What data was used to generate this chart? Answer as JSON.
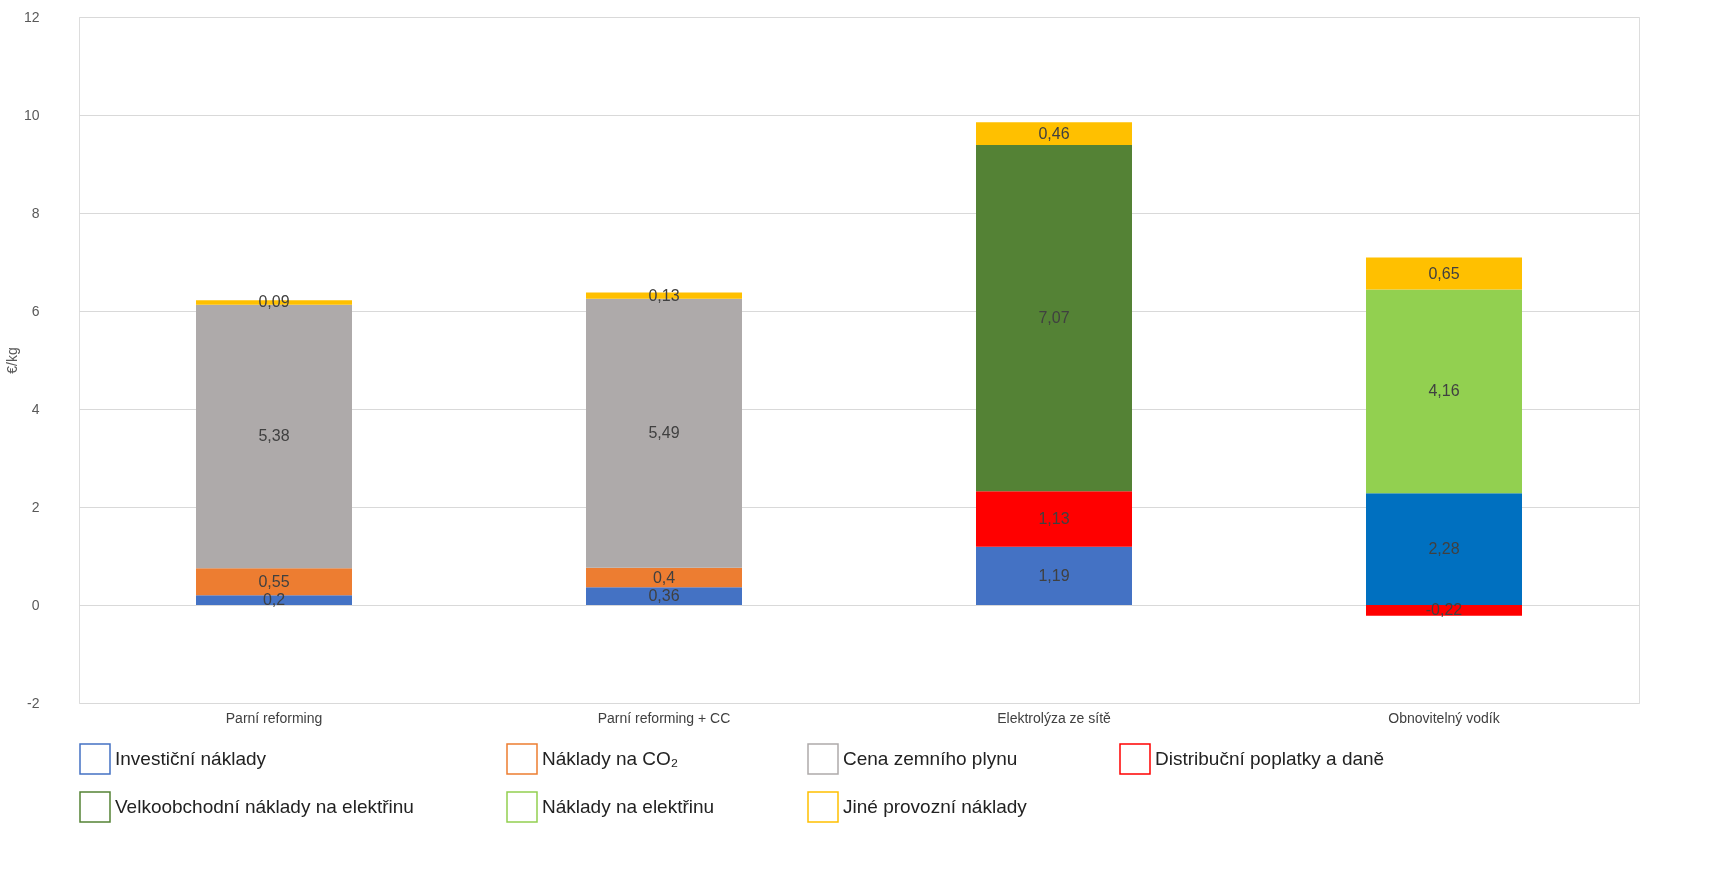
{
  "chart_data": {
    "type": "bar",
    "stacked": true,
    "ylabel": "€/kg",
    "categories": [
      "Parní reforming",
      "Parní reforming + CC",
      "Elektrolýza ze sítě",
      "Obnovitelný vodík"
    ],
    "series": [
      {
        "name": "Investiční náklady",
        "color": "#4472c4",
        "colors": [
          "#4472c4",
          "#4472c4",
          "#4472c4",
          "#0070c0"
        ],
        "values": [
          0.2,
          0.36,
          1.19,
          2.28
        ],
        "value_labels": [
          "0,2",
          "0,36",
          "1,19",
          "2,28"
        ]
      },
      {
        "name": "Náklady na CO₂",
        "color": "#ed7d31",
        "values": [
          0.55,
          0.4,
          null,
          null
        ],
        "value_labels": [
          "0,55",
          "0,4",
          null,
          null
        ]
      },
      {
        "name": "Cena zemního plynu",
        "color": "#aeaaaa",
        "values": [
          5.38,
          5.49,
          null,
          null
        ],
        "value_labels": [
          "5,38",
          "5,49",
          null,
          null
        ]
      },
      {
        "name": "Distribuční poplatky a daně",
        "color": "#ff0000",
        "values": [
          null,
          null,
          1.13,
          -0.22
        ],
        "value_labels": [
          null,
          null,
          "1,13",
          "-0,22"
        ]
      },
      {
        "name": "Velkoobchodní náklady na elektřinu",
        "color": "#548235",
        "values": [
          null,
          null,
          7.07,
          null
        ],
        "value_labels": [
          null,
          null,
          "7,07",
          null
        ]
      },
      {
        "name": "Náklady na elektřinu",
        "color": "#92d050",
        "values": [
          null,
          null,
          null,
          4.16
        ],
        "value_labels": [
          null,
          null,
          null,
          "4,16"
        ]
      },
      {
        "name": "Jiné provozní náklady",
        "color": "#ffc000",
        "values": [
          0.09,
          0.13,
          0.46,
          0.65
        ],
        "value_labels": [
          "0,09",
          "0,13",
          "0,46",
          "0,65"
        ]
      }
    ],
    "ylim": [
      -2,
      12
    ],
    "yticks": [
      -2,
      0,
      2,
      4,
      6,
      8,
      10,
      12
    ],
    "grid": "y",
    "legend": "bottom"
  }
}
